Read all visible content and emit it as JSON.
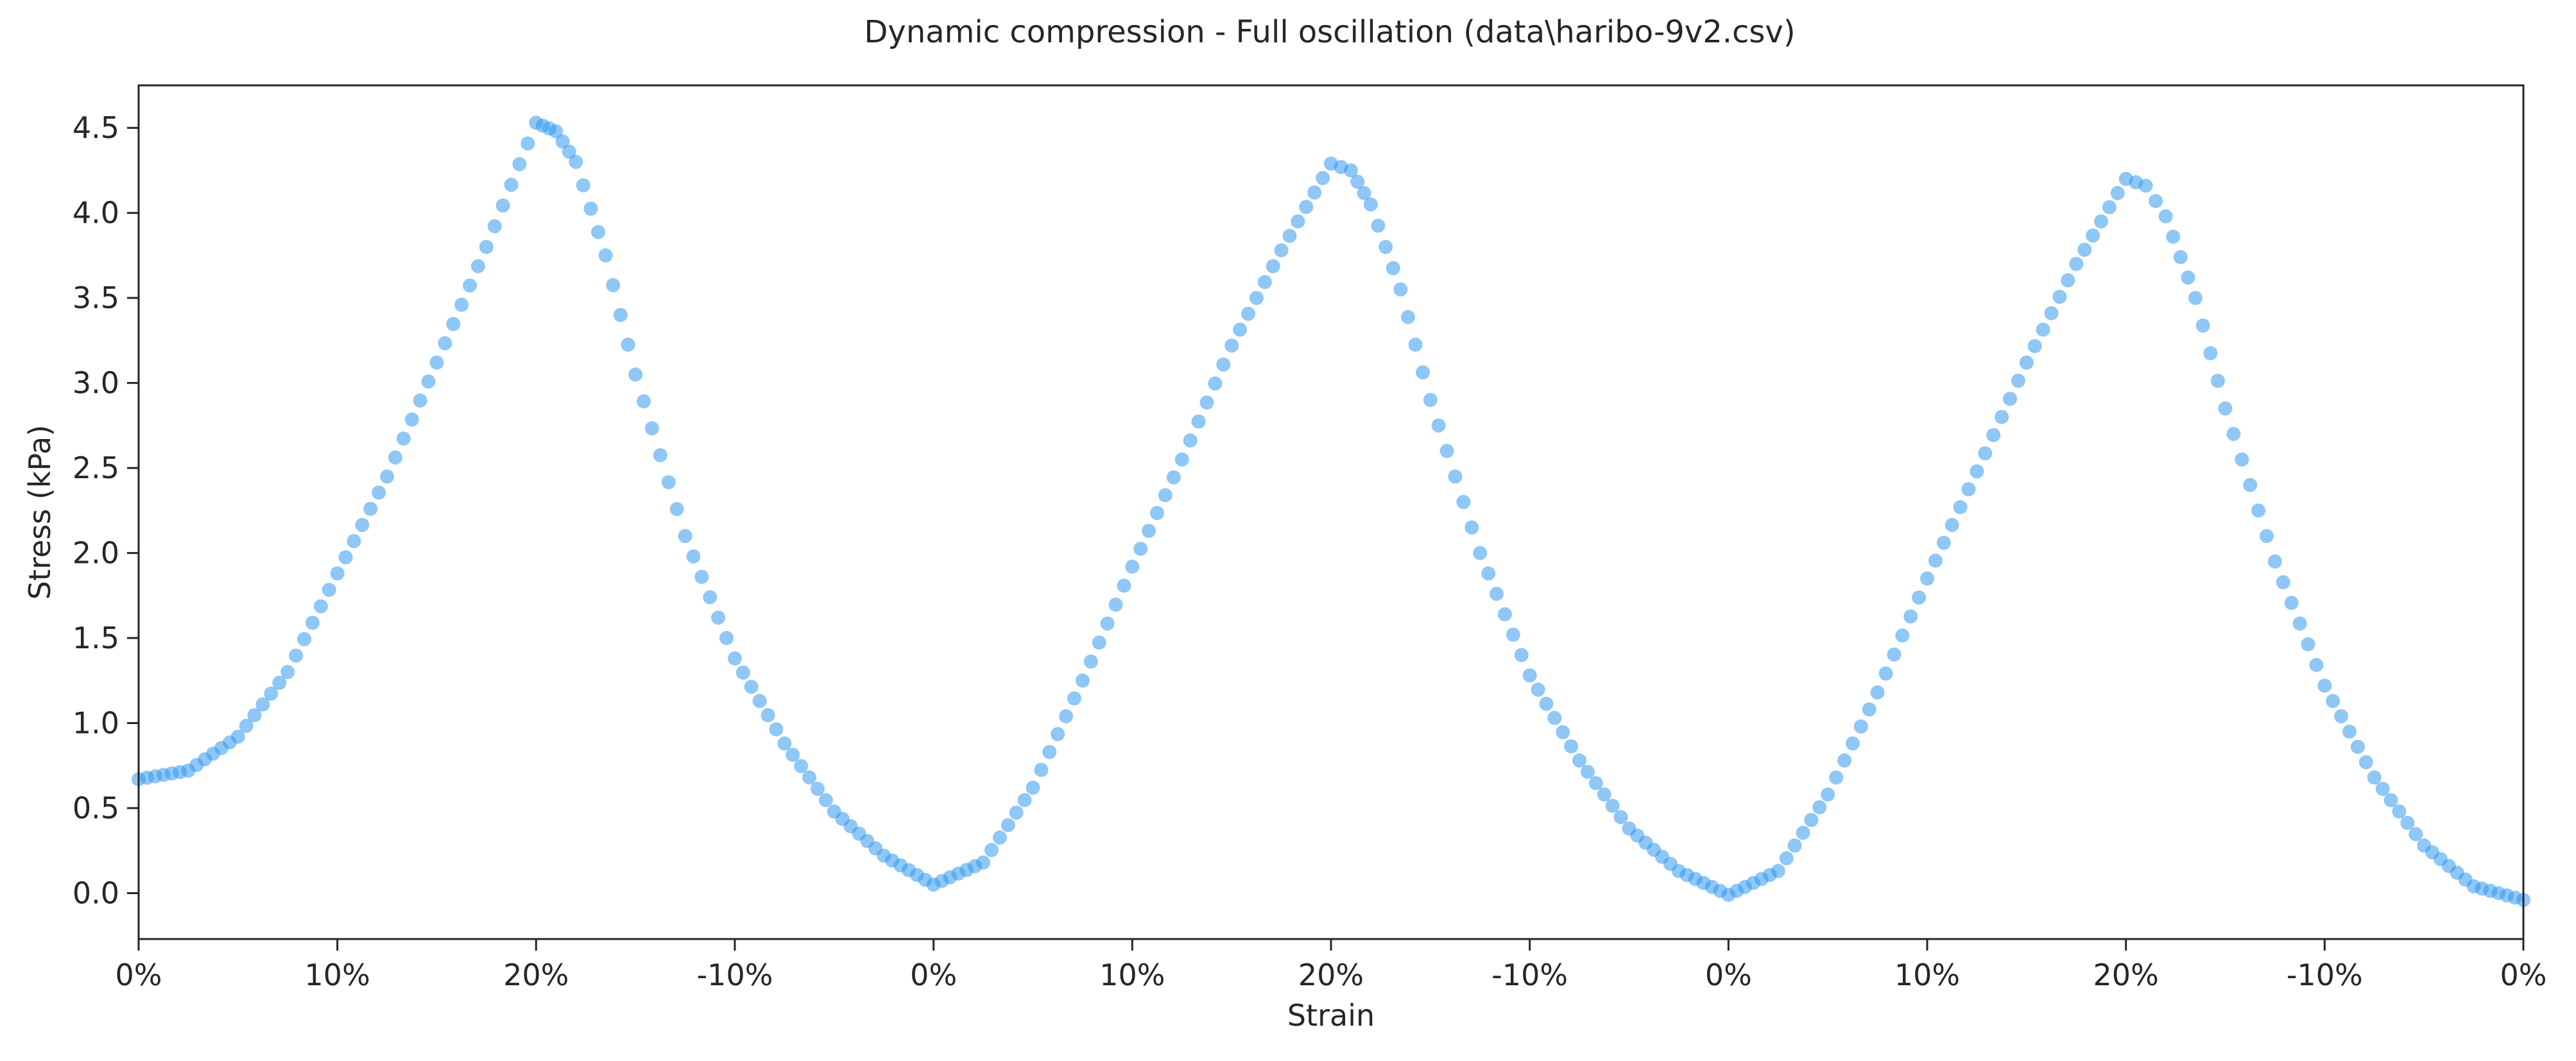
{
  "chart_data": {
    "type": "scatter",
    "title": "Dynamic compression - Full oscillation (data\\haribo-9v2.csv)",
    "xlabel": "Strain",
    "ylabel": "Stress (kPa)",
    "xlim": [
      0,
      12
    ],
    "ylim": [
      -0.27,
      4.75
    ],
    "x_tick_positions": [
      0,
      1,
      2,
      3,
      4,
      5,
      6,
      7,
      8,
      9,
      10,
      11,
      12
    ],
    "x_tick_labels": [
      "0%",
      "10%",
      "20%",
      "-10%",
      "0%",
      "10%",
      "20%",
      "-10%",
      "0%",
      "10%",
      "20%",
      "-10%",
      "0%"
    ],
    "y_ticks": [
      0.0,
      0.5,
      1.0,
      1.5,
      2.0,
      2.5,
      3.0,
      3.5,
      4.0,
      4.5
    ],
    "y_tick_labels": [
      "0.0",
      "0.5",
      "1.0",
      "1.5",
      "2.0",
      "2.5",
      "3.0",
      "3.5",
      "4.0",
      "4.5"
    ],
    "grid": false,
    "marker_color": "#3399ee",
    "series": [
      {
        "points": [
          [
            0.0,
            0.67
          ],
          [
            0.25,
            0.72
          ],
          [
            0.5,
            0.92
          ],
          [
            0.75,
            1.3
          ],
          [
            1.0,
            1.88
          ],
          [
            1.25,
            2.45
          ],
          [
            1.5,
            3.12
          ],
          [
            1.75,
            3.8
          ],
          [
            2.0,
            4.53
          ],
          [
            2.1,
            4.48
          ],
          [
            2.2,
            4.3
          ],
          [
            2.35,
            3.75
          ],
          [
            2.5,
            3.05
          ],
          [
            2.75,
            2.1
          ],
          [
            3.0,
            1.38
          ],
          [
            3.25,
            0.88
          ],
          [
            3.5,
            0.48
          ],
          [
            3.75,
            0.22
          ],
          [
            4.0,
            0.05
          ],
          [
            4.25,
            0.18
          ],
          [
            4.5,
            0.62
          ],
          [
            4.75,
            1.25
          ],
          [
            5.0,
            1.92
          ],
          [
            5.25,
            2.55
          ],
          [
            5.5,
            3.22
          ],
          [
            5.75,
            3.78
          ],
          [
            6.0,
            4.29
          ],
          [
            6.1,
            4.25
          ],
          [
            6.2,
            4.05
          ],
          [
            6.35,
            3.55
          ],
          [
            6.5,
            2.9
          ],
          [
            6.75,
            2.0
          ],
          [
            7.0,
            1.28
          ],
          [
            7.25,
            0.78
          ],
          [
            7.5,
            0.38
          ],
          [
            7.75,
            0.13
          ],
          [
            8.0,
            -0.01
          ],
          [
            8.25,
            0.13
          ],
          [
            8.5,
            0.58
          ],
          [
            8.75,
            1.18
          ],
          [
            9.0,
            1.85
          ],
          [
            9.25,
            2.48
          ],
          [
            9.5,
            3.12
          ],
          [
            9.75,
            3.7
          ],
          [
            10.0,
            4.2
          ],
          [
            10.1,
            4.16
          ],
          [
            10.2,
            3.98
          ],
          [
            10.35,
            3.5
          ],
          [
            10.5,
            2.85
          ],
          [
            10.75,
            1.95
          ],
          [
            11.0,
            1.22
          ],
          [
            11.25,
            0.68
          ],
          [
            11.5,
            0.28
          ],
          [
            11.75,
            0.04
          ],
          [
            12.0,
            -0.04
          ]
        ]
      }
    ]
  }
}
